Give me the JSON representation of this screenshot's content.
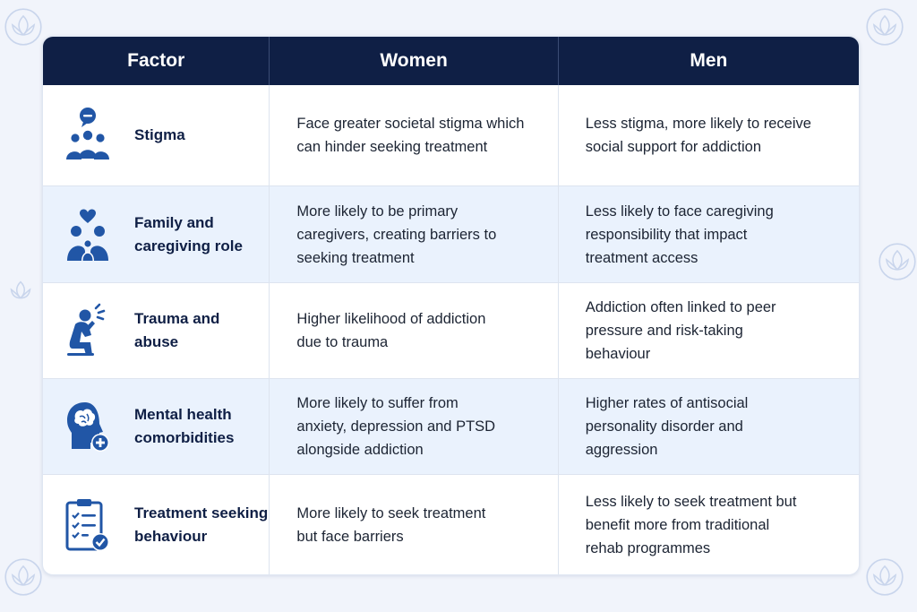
{
  "colors": {
    "header_bg": "#0f1f45",
    "icon_blue": "#2156a6",
    "alt_row_bg": "#eaf2fd"
  },
  "table": {
    "headers": [
      "Factor",
      "Women",
      "Men"
    ],
    "rows": [
      {
        "factor": "Stigma",
        "icon": "people-speech-bubble-icon",
        "women": "Face greater societal stigma which\ncan hinder seeking treatment",
        "men": "Less stigma, more likely to receive\nsocial support for addiction"
      },
      {
        "factor": "Family and\ncaregiving role",
        "icon": "family-heart-icon",
        "women": "More likely to be primary\ncaregivers, creating barriers to\nseeking treatment",
        "men": "Less likely to face caregiving\nresponsibility that impact\ntreatment access"
      },
      {
        "factor": "Trauma and\nabuse",
        "icon": "distressed-person-icon",
        "women": "Higher likelihood of addiction\ndue to trauma",
        "men": "Addiction often linked to peer\npressure and risk-taking\nbehaviour"
      },
      {
        "factor": "Mental health\ncomorbidities",
        "icon": "brain-head-plus-icon",
        "women": "More likely to suffer from\nanxiety, depression and PTSD\nalongside addiction",
        "men": "Higher rates of antisocial\npersonality disorder and\naggression"
      },
      {
        "factor": "Treatment seeking\nbehaviour",
        "icon": "clipboard-checklist-icon",
        "women": "More likely to seek treatment\nbut face barriers",
        "men": "Less likely to seek treatment but\nbenefit more from traditional\nrehab programmes"
      }
    ]
  }
}
